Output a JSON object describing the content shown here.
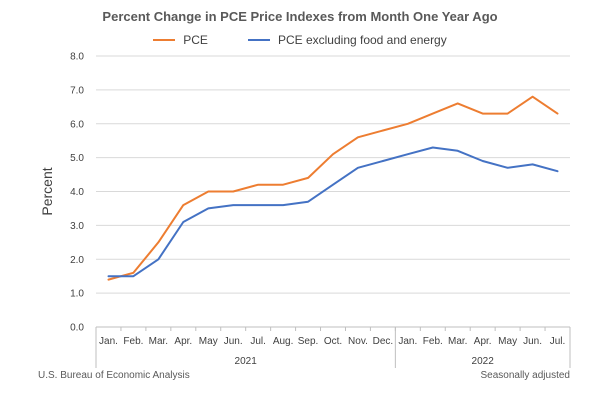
{
  "footer": {
    "source": "U.S. Bureau of Economic Analysis",
    "note": "Seasonally adjusted"
  },
  "chart_data": {
    "type": "line",
    "title": "Percent Change in PCE Price Indexes from Month One Year Ago",
    "ylabel": "Percent",
    "xlabel": "",
    "ylim": [
      0,
      8
    ],
    "yticks": [
      "0.0",
      "1.0",
      "2.0",
      "3.0",
      "4.0",
      "5.0",
      "6.0",
      "7.0",
      "8.0"
    ],
    "categories": [
      "Jan.",
      "Feb.",
      "Mar.",
      "Apr.",
      "May",
      "Jun.",
      "Jul.",
      "Aug.",
      "Sep.",
      "Oct.",
      "Nov.",
      "Dec.",
      "Jan.",
      "Feb.",
      "Mar.",
      "Apr.",
      "May",
      "Jun.",
      "Jul."
    ],
    "year_groups": [
      {
        "label": "2021",
        "count": 12
      },
      {
        "label": "2022",
        "count": 7
      }
    ],
    "grid": true,
    "legend_position": "top",
    "series": [
      {
        "name": "PCE",
        "color": "#ed7d31",
        "values": [
          1.4,
          1.6,
          2.5,
          3.6,
          4.0,
          4.0,
          4.2,
          4.2,
          4.4,
          5.1,
          5.6,
          5.8,
          6.0,
          6.3,
          6.6,
          6.3,
          6.3,
          6.8,
          6.3
        ]
      },
      {
        "name": "PCE excluding food and energy",
        "color": "#4472c4",
        "values": [
          1.5,
          1.5,
          2.0,
          3.1,
          3.5,
          3.6,
          3.6,
          3.6,
          3.7,
          4.2,
          4.7,
          4.9,
          5.1,
          5.3,
          5.2,
          4.9,
          4.7,
          4.8,
          4.6
        ]
      }
    ]
  }
}
